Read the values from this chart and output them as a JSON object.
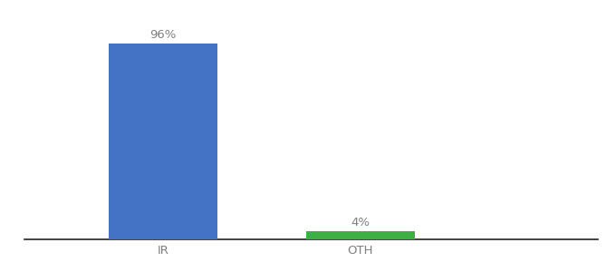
{
  "categories": [
    "IR",
    "OTH"
  ],
  "values": [
    96,
    4
  ],
  "bar_colors": [
    "#4472C4",
    "#3CB043"
  ],
  "value_labels": [
    "96%",
    "4%"
  ],
  "background_color": "#ffffff",
  "text_color": "#7f7f7f",
  "ylim": [
    0,
    108
  ],
  "bar_width": 0.55,
  "label_fontsize": 9.5,
  "tick_fontsize": 9.5,
  "figsize": [
    6.8,
    3.0
  ],
  "dpi": 100
}
